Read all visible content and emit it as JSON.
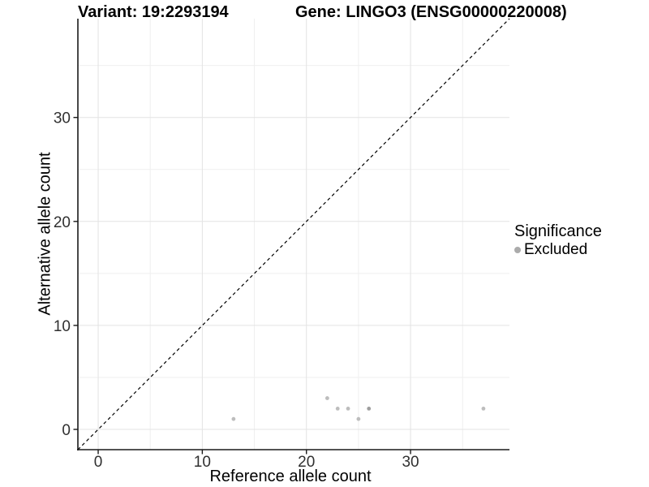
{
  "header": {
    "variant_title": "Variant: 19:2293194",
    "gene_title": "Gene: LINGO3 (ENSG00000220008)"
  },
  "legend": {
    "title": "Significance",
    "items": [
      {
        "label": "Excluded",
        "color": "#ababab"
      }
    ]
  },
  "chart_data": {
    "type": "scatter",
    "title": "Variant: 19:2293194   Gene: LINGO3 (ENSG00000220008)",
    "xlabel": "Reference allele count",
    "ylabel": "Alternative allele count",
    "xlim": [
      -1.95,
      39.5
    ],
    "ylim": [
      -1.95,
      39.5
    ],
    "x_major_ticks": [
      0,
      10,
      20,
      30
    ],
    "y_major_ticks": [
      0,
      10,
      20,
      30
    ],
    "x_minor_ticks": [
      5,
      15,
      25,
      35
    ],
    "y_minor_ticks": [
      5,
      15,
      25,
      35
    ],
    "grid": true,
    "legend_position": "right",
    "identity_line": {
      "style": "dashed",
      "from": -1.95,
      "to": 39.5,
      "color": "#000000"
    },
    "series": [
      {
        "name": "Excluded",
        "color": "#bdbdbd",
        "points": [
          {
            "x": 13,
            "y": 1
          },
          {
            "x": 22,
            "y": 3
          },
          {
            "x": 23,
            "y": 2
          },
          {
            "x": 24,
            "y": 2
          },
          {
            "x": 25,
            "y": 1
          },
          {
            "x": 26,
            "y": 2,
            "color": "#9e9e9e"
          },
          {
            "x": 37,
            "y": 2
          }
        ]
      }
    ],
    "point_radius": 2.4,
    "colors": {
      "grid_major": "#e3e3e3",
      "grid_minor": "#efefef",
      "axis_line": "#1a1a1a",
      "tick_label": "#303030"
    }
  }
}
